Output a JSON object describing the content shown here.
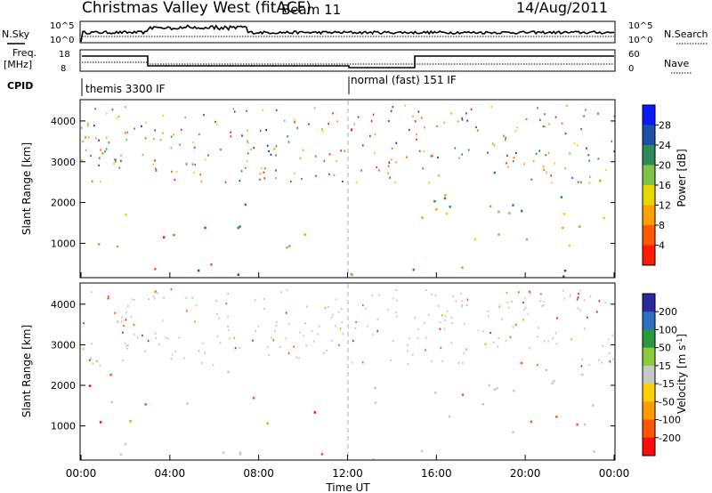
{
  "header": {
    "station": "Christmas Valley West (fitACF)",
    "beam": "Beam 11",
    "date": "14/Aug/2011"
  },
  "top_panels": {
    "nsky_label": "N.Sky",
    "nsearch_label": "N.Search",
    "freq_label_1": "Freq.",
    "freq_label_2": "[MHz]",
    "nave_label": "Nave",
    "cpid_label": "CPID",
    "noise_left_ticks": [
      "10^5",
      "10^0"
    ],
    "noise_right_ticks": [
      "10^5",
      "10^0"
    ],
    "freq_left_ticks": [
      "18",
      "8"
    ],
    "freq_right_ticks": [
      "60",
      "0"
    ],
    "cpid_segments": [
      {
        "label": "themis 3300 IF",
        "start_hour": 0
      },
      {
        "label": "normal (fast) 151 IF",
        "start_hour": 12
      }
    ]
  },
  "chart_data": [
    {
      "type": "heatmap",
      "name": "power",
      "ylabel": "Slant Range [km]",
      "yticks": [
        1000,
        2000,
        3000,
        4000
      ],
      "ylim": [
        180,
        4500
      ],
      "xlim": [
        0,
        24
      ],
      "colorbar": {
        "label": "Power [dB]",
        "ticks": [
          "4",
          "8",
          "12",
          "16",
          "20",
          "24",
          "28"
        ],
        "colors": [
          "#0a1aff",
          "#1b4fa8",
          "#2e8a5a",
          "#7fc34a",
          "#e8d800",
          "#ffa000",
          "#ff5a00",
          "#ff1a00"
        ]
      }
    },
    {
      "type": "heatmap",
      "name": "velocity",
      "ylabel": "Slant Range [km]",
      "yticks": [
        1000,
        2000,
        3000,
        4000
      ],
      "ylim": [
        180,
        4500
      ],
      "xlim": [
        0,
        24
      ],
      "colorbar": {
        "label": "Velocity [m s",
        "label_sup": "-1",
        "label_close": "]",
        "ticks": [
          "200",
          "100",
          "50",
          "15",
          "-15",
          "-50",
          "-100",
          "-200"
        ],
        "colors": [
          "#2a2aa0",
          "#2f6fc0",
          "#2a9a40",
          "#8acb3a",
          "#c8c8c8",
          "#ffd000",
          "#ff9a00",
          "#ff5500",
          "#ff0a0a"
        ]
      }
    }
  ],
  "time_axis": {
    "label": "Time UT",
    "ticks": [
      "00:00",
      "04:00",
      "08:00",
      "12:00",
      "16:00",
      "20:00",
      "00:00"
    ]
  }
}
